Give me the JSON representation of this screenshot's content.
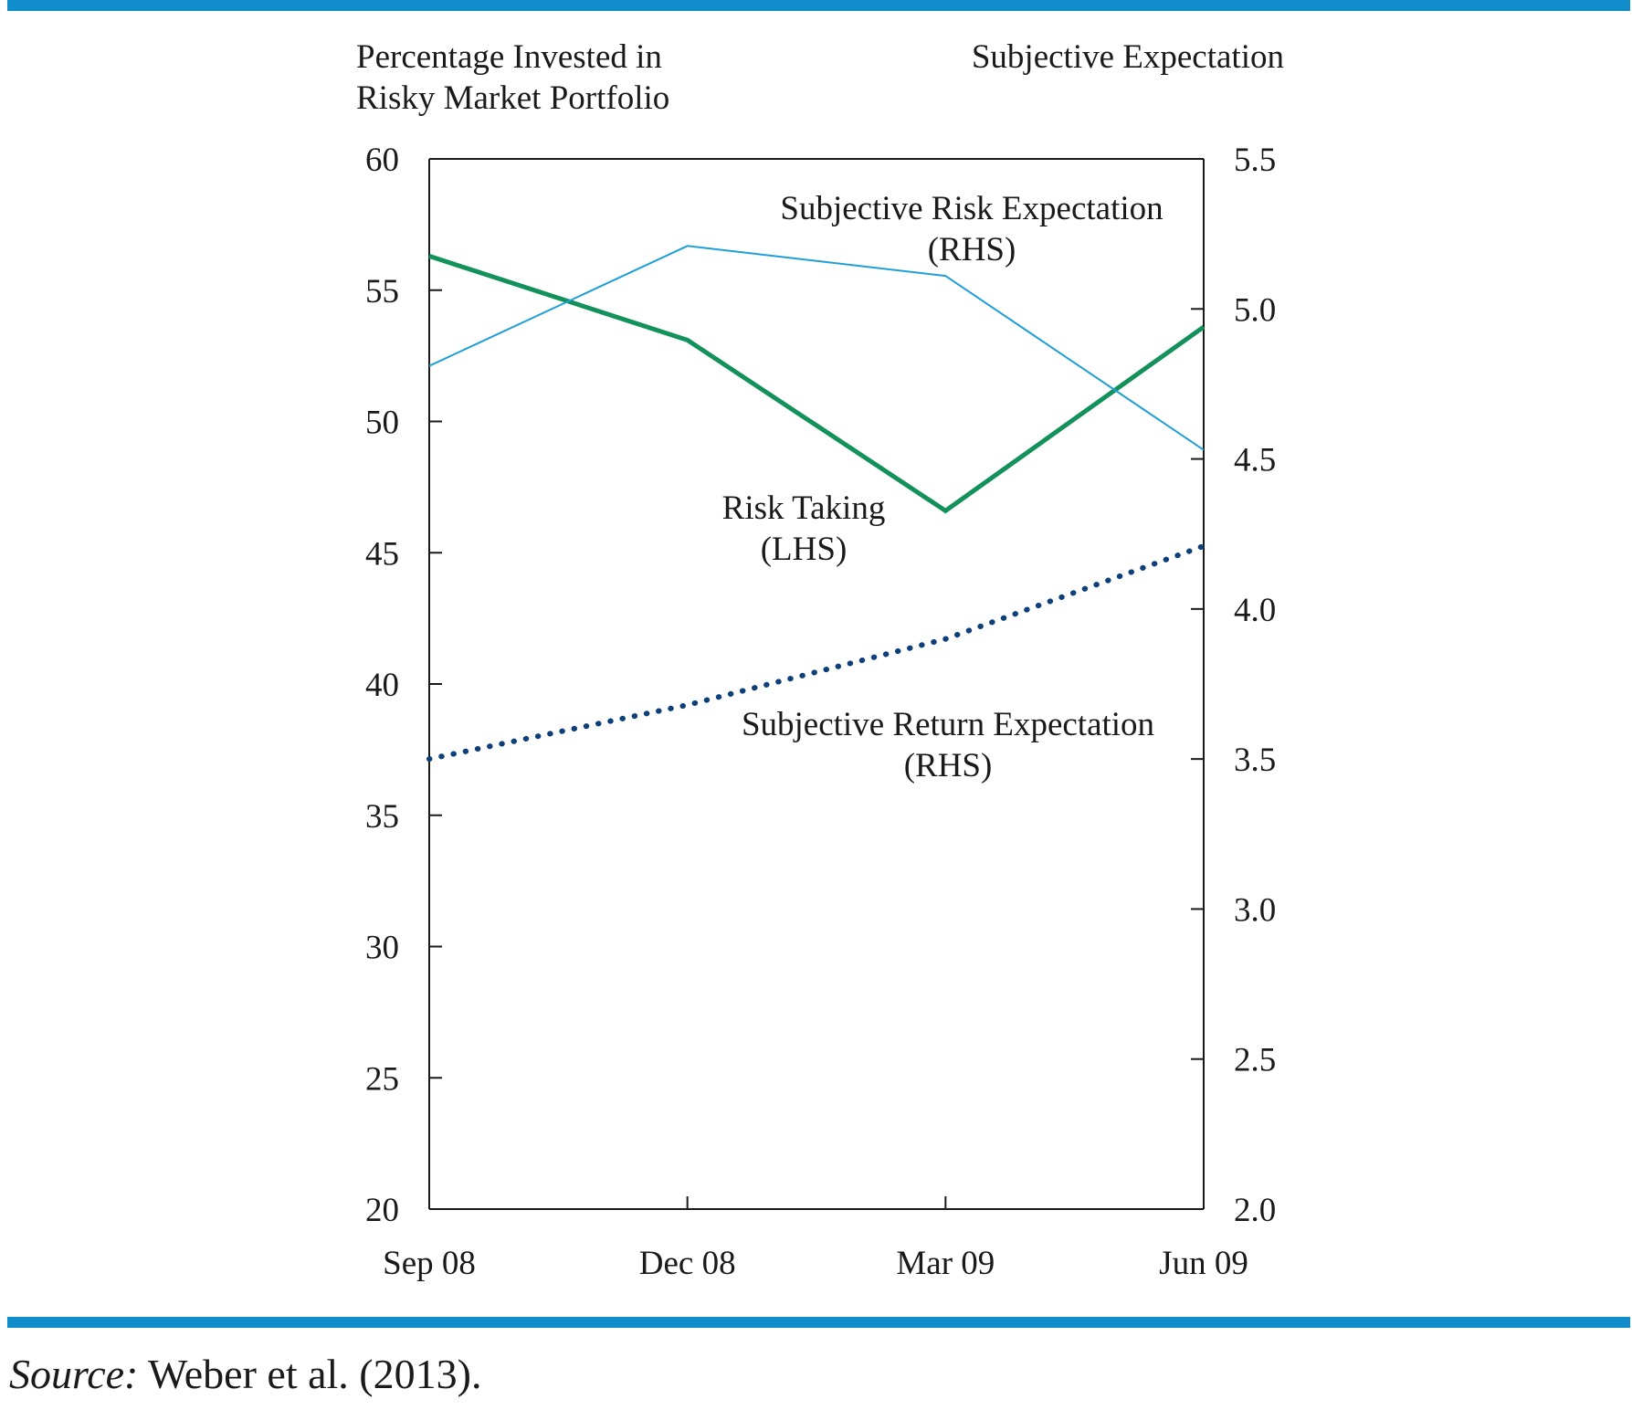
{
  "colors": {
    "rule": "#0f8cc9",
    "risk_taking": "#12915a",
    "risk_expectation": "#1f9fd8",
    "return_expectation": "#0d3f7a",
    "axis": "#1a1a1a"
  },
  "chart_data": {
    "type": "line",
    "left_axis_title": [
      "Percentage Invested in",
      "Risky Market Portfolio"
    ],
    "right_axis_title": "Subjective Expectation",
    "categories": [
      "Sep 08",
      "Dec 08",
      "Mar 09",
      "Jun 09"
    ],
    "left_axis": {
      "min": 20,
      "max": 60,
      "ticks": [
        "60",
        "55",
        "50",
        "45",
        "40",
        "35",
        "30",
        "25",
        "20"
      ]
    },
    "right_axis": {
      "min": 2.0,
      "max": 5.5,
      "ticks": [
        "5.5",
        "5.0",
        "4.5",
        "4.0",
        "3.5",
        "3.0",
        "2.5",
        "2.0"
      ]
    },
    "grid": false,
    "series": [
      {
        "name": "Risk Taking (LHS)",
        "axis": "left",
        "style": "solid-thick",
        "values": [
          56.3,
          53.1,
          46.6,
          53.6
        ]
      },
      {
        "name": "Subjective Risk Expectation (RHS)",
        "axis": "right",
        "style": "solid-thin",
        "values": [
          4.81,
          5.21,
          5.11,
          4.53
        ]
      },
      {
        "name": "Subjective Return Expectation (RHS)",
        "axis": "right",
        "style": "dotted",
        "values": [
          3.5,
          3.68,
          3.9,
          4.21
        ]
      }
    ],
    "labels": [
      {
        "series": "Subjective Risk Expectation (RHS)",
        "lines": [
          "Subjective Risk Expectation",
          "(RHS)"
        ]
      },
      {
        "series": "Risk Taking (LHS)",
        "lines": [
          "Risk Taking",
          "(LHS)"
        ]
      },
      {
        "series": "Subjective Return Expectation (RHS)",
        "lines": [
          "Subjective Return Expectation",
          "(RHS)"
        ]
      }
    ]
  },
  "source": {
    "label": "Source:",
    "text": " Weber et al. (2013)."
  }
}
